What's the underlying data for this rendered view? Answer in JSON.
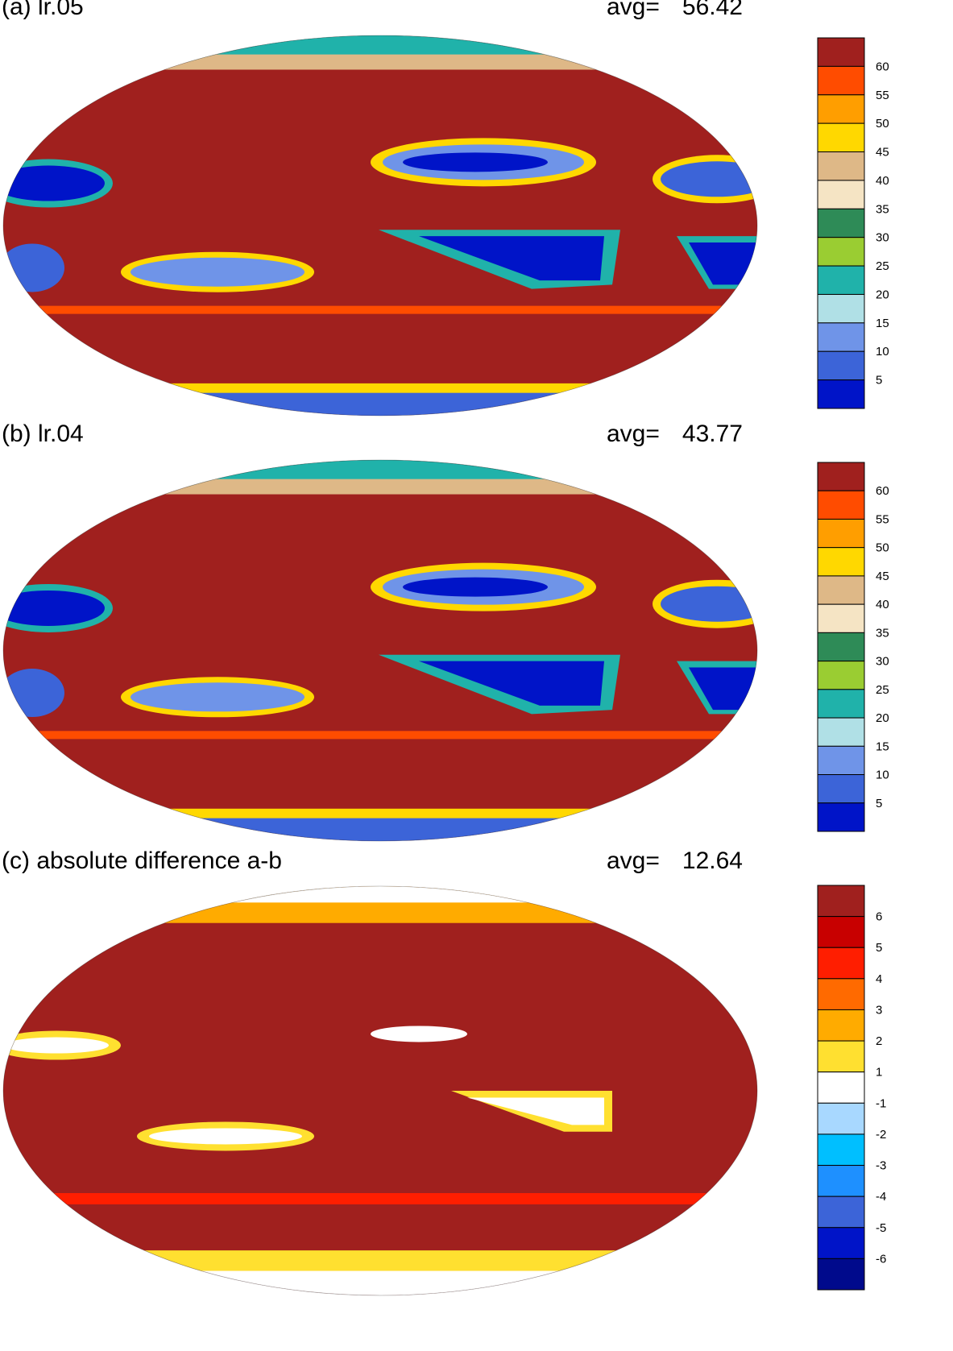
{
  "chart_data": [
    {
      "type": "heatmap",
      "title": "(a) lr.05",
      "avg_label": "avg=",
      "avg_value": "56.42",
      "colorbar": {
        "labels": [
          "60",
          "55",
          "50",
          "45",
          "40",
          "35",
          "30",
          "25",
          "20",
          "15",
          "10",
          "5"
        ],
        "colors": [
          "#a0201e",
          "#ff4c00",
          "#ff9e00",
          "#ffd800",
          "#deb887",
          "#f5e4c4",
          "#2e8b57",
          "#9acd32",
          "#20b2aa",
          "#b0e0e6",
          "#6f94e8",
          "#3c64d8",
          "#0014c8"
        ]
      },
      "map": {
        "background": "#a0201e",
        "regions": [
          {
            "color": "#3c64d8",
            "shape": "band-west",
            "lat": [
              -15,
              20
            ]
          },
          {
            "color": "#0014c8",
            "shape": "subtropical-high-sp"
          },
          {
            "color": "#0014c8",
            "shape": "subtropical-high-np"
          },
          {
            "color": "#6f94e8",
            "shape": "indian-ocean-south"
          },
          {
            "color": "#20b2aa",
            "shape": "arctic"
          },
          {
            "color": "#0014c8",
            "shape": "antarctic"
          }
        ]
      }
    },
    {
      "type": "heatmap",
      "title": "(b) lr.04",
      "avg_label": "avg=",
      "avg_value": "43.77",
      "colorbar": {
        "labels": [
          "60",
          "55",
          "50",
          "45",
          "40",
          "35",
          "30",
          "25",
          "20",
          "15",
          "10",
          "5"
        ],
        "colors": [
          "#a0201e",
          "#ff4c00",
          "#ff9e00",
          "#ffd800",
          "#deb887",
          "#f5e4c4",
          "#2e8b57",
          "#9acd32",
          "#20b2aa",
          "#b0e0e6",
          "#6f94e8",
          "#3c64d8",
          "#0014c8"
        ]
      }
    },
    {
      "type": "heatmap",
      "title": "(c) absolute difference a-b",
      "avg_label": "avg=",
      "avg_value": "12.64",
      "colorbar": {
        "labels": [
          "6",
          "5",
          "4",
          "3",
          "2",
          "1",
          "-1",
          "-2",
          "-3",
          "-4",
          "-5",
          "-6"
        ],
        "colors": [
          "#a0201e",
          "#c80000",
          "#ff1e00",
          "#ff6a00",
          "#ffab00",
          "#ffe030",
          "#ffffff",
          "#a8d8ff",
          "#00bfff",
          "#1e90ff",
          "#3c64d8",
          "#0014c8",
          "#000a8c"
        ]
      }
    }
  ]
}
